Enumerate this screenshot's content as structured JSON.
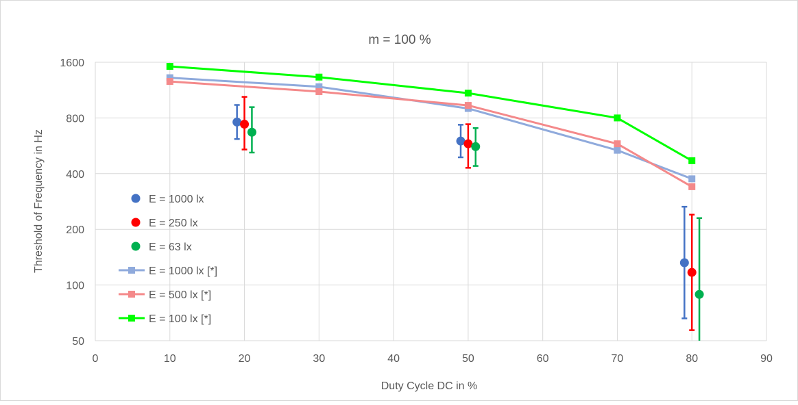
{
  "chart_data": {
    "type": "scatter",
    "title": "m = 100 %",
    "xlabel": "Duty Cycle DC in %",
    "ylabel": "Threshold of Frequency in Hz",
    "x_range": [
      0,
      90
    ],
    "x_ticks": [
      "0",
      "10",
      "20",
      "30",
      "40",
      "50",
      "60",
      "70",
      "80",
      "90"
    ],
    "y_scale": "log2",
    "y_range": [
      50,
      1600
    ],
    "y_ticks": [
      "50",
      "100",
      "200",
      "400",
      "800",
      "1600"
    ],
    "grid": true,
    "legend_position": "left",
    "series": [
      {
        "name": "E = 1000 lx",
        "kind": "points_with_error_bars",
        "color": "#4472c4",
        "points": [
          {
            "x": 19,
            "y": 760,
            "ymin": 615,
            "ymax": 940
          },
          {
            "x": 49,
            "y": 600,
            "ymin": 490,
            "ymax": 735
          },
          {
            "x": 79,
            "y": 132,
            "ymin": 66,
            "ymax": 265
          }
        ]
      },
      {
        "name": "E = 250 lx",
        "kind": "points_with_error_bars",
        "color": "#ff0000",
        "points": [
          {
            "x": 20,
            "y": 740,
            "ymin": 540,
            "ymax": 1040
          },
          {
            "x": 50,
            "y": 580,
            "ymin": 430,
            "ymax": 740
          },
          {
            "x": 80,
            "y": 117,
            "ymin": 57,
            "ymax": 240
          }
        ]
      },
      {
        "name": "E = 63 lx",
        "kind": "points_with_error_bars",
        "color": "#00b050",
        "points": [
          {
            "x": 21,
            "y": 670,
            "ymin": 520,
            "ymax": 915
          },
          {
            "x": 51,
            "y": 560,
            "ymin": 440,
            "ymax": 705
          },
          {
            "x": 81,
            "y": 89,
            "ymin": 38,
            "ymax": 230
          }
        ]
      },
      {
        "name": "E = 1000 lx [*]",
        "kind": "line",
        "color": "#8faadc",
        "points": [
          {
            "x": 10,
            "y": 1320
          },
          {
            "x": 30,
            "y": 1180
          },
          {
            "x": 50,
            "y": 900
          },
          {
            "x": 70,
            "y": 535
          },
          {
            "x": 80,
            "y": 375
          }
        ]
      },
      {
        "name": "E = 500 lx [*]",
        "kind": "line",
        "color": "#f4898a",
        "points": [
          {
            "x": 10,
            "y": 1260
          },
          {
            "x": 30,
            "y": 1110
          },
          {
            "x": 50,
            "y": 935
          },
          {
            "x": 70,
            "y": 580
          },
          {
            "x": 80,
            "y": 340
          }
        ]
      },
      {
        "name": "E = 100 lx [*]",
        "kind": "line",
        "color": "#00ff00",
        "points": [
          {
            "x": 10,
            "y": 1520
          },
          {
            "x": 30,
            "y": 1330
          },
          {
            "x": 50,
            "y": 1090
          },
          {
            "x": 70,
            "y": 800
          },
          {
            "x": 80,
            "y": 470
          }
        ]
      }
    ]
  }
}
